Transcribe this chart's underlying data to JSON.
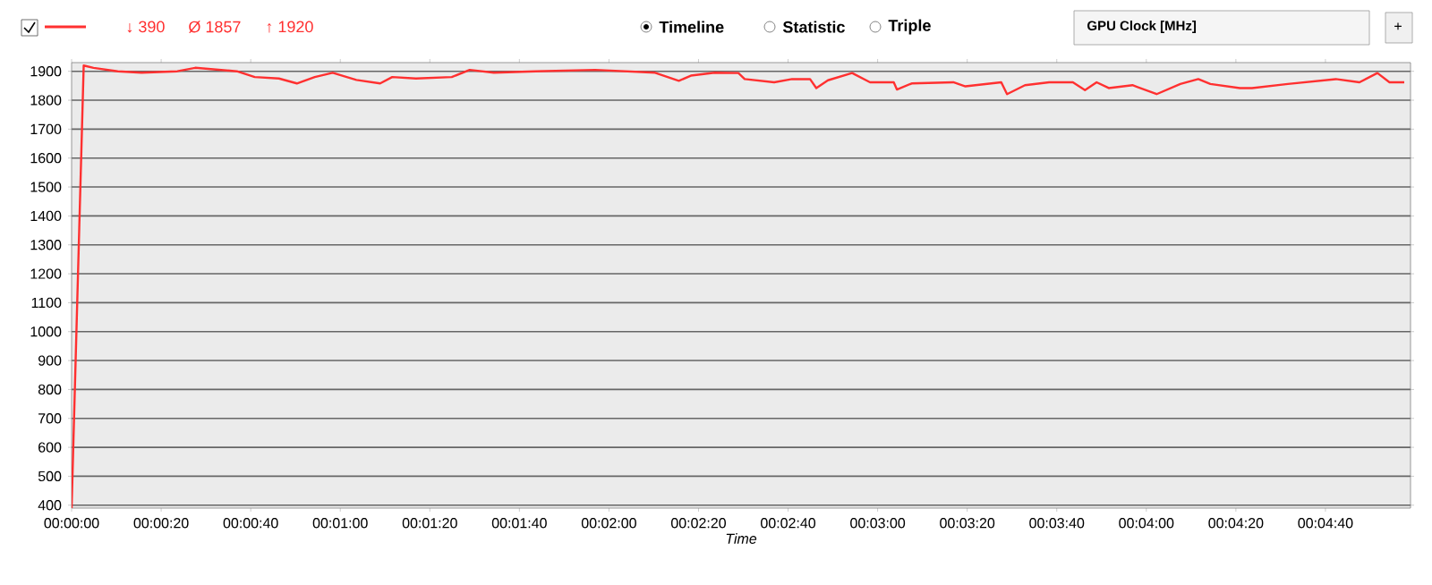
{
  "chart_data": {
    "type": "line",
    "xlabel": "Time",
    "xlim": [
      0,
      299
    ],
    "ylim": [
      390,
      1930
    ],
    "xticks": [
      {
        "value": 0,
        "label": "00:00:00"
      },
      {
        "value": 20,
        "label": "00:00:20"
      },
      {
        "value": 40,
        "label": "00:00:40"
      },
      {
        "value": 60,
        "label": "00:01:00"
      },
      {
        "value": 80,
        "label": "00:01:20"
      },
      {
        "value": 100,
        "label": "00:01:40"
      },
      {
        "value": 120,
        "label": "00:02:00"
      },
      {
        "value": 140,
        "label": "00:02:20"
      },
      {
        "value": 160,
        "label": "00:02:40"
      },
      {
        "value": 180,
        "label": "00:03:00"
      },
      {
        "value": 200,
        "label": "00:03:20"
      },
      {
        "value": 220,
        "label": "00:03:40"
      },
      {
        "value": 240,
        "label": "00:04:00"
      },
      {
        "value": 260,
        "label": "00:04:20"
      },
      {
        "value": 280,
        "label": "00:04:40"
      }
    ],
    "yticks": [
      400,
      500,
      600,
      700,
      800,
      900,
      1000,
      1100,
      1200,
      1300,
      1400,
      1500,
      1600,
      1700,
      1800,
      1900
    ],
    "grid": "y",
    "marker": "none",
    "line_style": "solid",
    "annotations": [
      "↓ 390",
      "Ø 1857",
      "↑ 1920",
      "Timeline",
      "Statistic",
      "Triple",
      "GPU Clock [MHz]",
      "+"
    ],
    "series": [
      {
        "color": "#ff3030",
        "x": [
          0,
          2.7,
          4.9,
          10.3,
          15.6,
          23.6,
          27.6,
          36.9,
          40.9,
          46.3,
          50.3,
          54.3,
          58.3,
          63.6,
          68.9,
          71.6,
          76.9,
          84.9,
          88.9,
          94.3,
          103.6,
          116.9,
          130.3,
          135.6,
          138.3,
          143.6,
          148.9,
          150.3,
          156.9,
          160.9,
          164.9,
          166.3,
          168.9,
          174.3,
          178.3,
          183.6,
          184.3,
          187.6,
          196.9,
          199.6,
          207.6,
          208.9,
          212.9,
          218.3,
          223.6,
          226.3,
          228.9,
          231.6,
          236.9,
          242.3,
          247.6,
          251.6,
          254.3,
          260.9,
          263.6,
          271.6,
          282.3,
          287.6,
          291.6,
          294.3,
          297.6
        ],
        "values": [
          390,
          1920,
          1912,
          1900,
          1895,
          1900,
          1912,
          1900,
          1880,
          1875,
          1858,
          1880,
          1895,
          1870,
          1858,
          1880,
          1875,
          1880,
          1905,
          1895,
          1900,
          1905,
          1895,
          1867,
          1885,
          1895,
          1894,
          1873,
          1862,
          1873,
          1873,
          1842,
          1869,
          1894,
          1862,
          1862,
          1837,
          1858,
          1862,
          1848,
          1862,
          1821,
          1852,
          1862,
          1862,
          1835,
          1862,
          1842,
          1852,
          1821,
          1856,
          1873,
          1856,
          1842,
          1842,
          1856,
          1873,
          1862,
          1894,
          1862,
          1862
        ]
      }
    ]
  }
}
